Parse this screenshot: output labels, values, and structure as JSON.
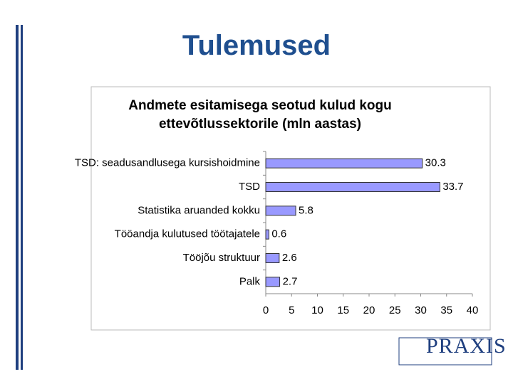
{
  "title": "Tulemused",
  "logo": "PRAXIS",
  "chart_data": {
    "type": "hbar",
    "title": "Andmete esitamisega seotud kulud kogu ettevõtlussektorile (mln aastas)",
    "categories": [
      "TSD: seadusandlusega kursishoidmine",
      "TSD",
      "Statistika aruanded kokku",
      "Tööandja kulutused töötajatele",
      "Tööjõu struktuur",
      "Palk"
    ],
    "values": [
      30.3,
      33.7,
      5.8,
      0.6,
      2.6,
      2.7
    ],
    "color": "#9999ff",
    "xlim": [
      0,
      40
    ],
    "xticks": [
      0,
      5,
      10,
      15,
      20,
      25,
      30,
      35,
      40
    ],
    "grid": false
  }
}
